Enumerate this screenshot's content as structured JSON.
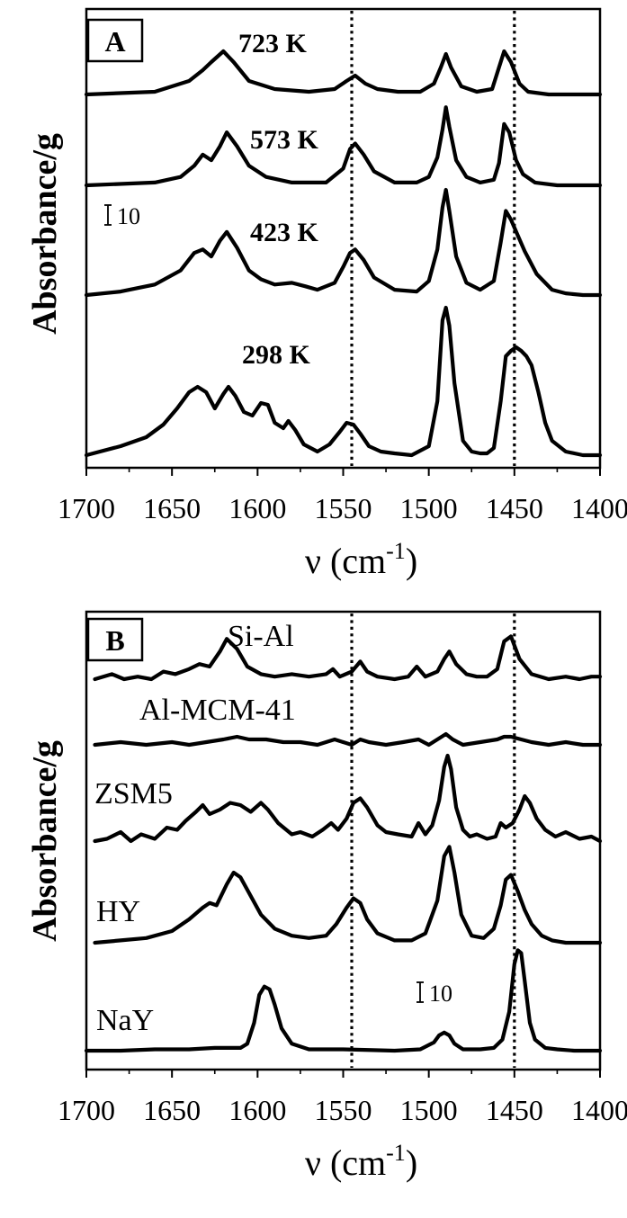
{
  "chart_data": [
    {
      "type": "line",
      "panel": "A",
      "xlabel": "ν (cm",
      "xlabel_sup": "-1",
      "xlabel_end": ")",
      "ylabel": "Absorbance/g",
      "xlim": [
        1700,
        1400
      ],
      "x_ticks": [
        "1700",
        "1650",
        "1600",
        "1550",
        "1500",
        "1450",
        "1400"
      ],
      "reference_lines": [
        1545,
        1450
      ],
      "scale_bar_label": "10",
      "series": [
        {
          "name": "723 K",
          "x": [
            1700,
            1660,
            1640,
            1632,
            1627,
            1620,
            1614,
            1605,
            1590,
            1570,
            1555,
            1548,
            1543,
            1537,
            1530,
            1518,
            1505,
            1497,
            1493,
            1490,
            1487,
            1481,
            1472,
            1463,
            1460,
            1456,
            1452,
            1447,
            1442,
            1430,
            1410,
            1400
          ],
          "y": [
            0,
            1,
            5,
            9,
            12,
            16,
            12,
            5,
            2,
            1,
            2,
            5,
            7,
            4,
            2,
            1,
            1,
            4,
            10,
            15,
            10,
            3,
            1,
            2,
            8,
            16,
            12,
            4,
            1,
            0,
            0,
            0
          ]
        },
        {
          "name": "573 K",
          "x": [
            1700,
            1660,
            1645,
            1637,
            1632,
            1627,
            1622,
            1618,
            1612,
            1605,
            1595,
            1580,
            1560,
            1550,
            1546,
            1543,
            1538,
            1532,
            1520,
            1507,
            1500,
            1495,
            1492,
            1490,
            1488,
            1484,
            1478,
            1470,
            1462,
            1459,
            1456,
            1453,
            1449,
            1445,
            1438,
            1425,
            1400
          ],
          "y": [
            0,
            1,
            3,
            7,
            11,
            9,
            14,
            19,
            14,
            7,
            3,
            1,
            1,
            6,
            13,
            15,
            11,
            5,
            1,
            1,
            3,
            10,
            20,
            28,
            21,
            9,
            3,
            1,
            2,
            8,
            22,
            19,
            9,
            4,
            1,
            0,
            0
          ]
        },
        {
          "name": "423 K",
          "x": [
            1700,
            1680,
            1660,
            1645,
            1637,
            1632,
            1627,
            1622,
            1618,
            1612,
            1605,
            1598,
            1590,
            1580,
            1572,
            1565,
            1555,
            1550,
            1546,
            1543,
            1538,
            1532,
            1520,
            1507,
            1500,
            1495,
            1492,
            1490,
            1488,
            1484,
            1478,
            1470,
            1462,
            1458,
            1455,
            1452,
            1448,
            1444,
            1437,
            1428,
            1420,
            1410,
            1400
          ],
          "y": [
            0,
            2,
            6,
            14,
            24,
            26,
            22,
            31,
            36,
            27,
            14,
            9,
            6,
            7,
            5,
            3,
            7,
            16,
            24,
            26,
            20,
            10,
            3,
            2,
            8,
            26,
            50,
            60,
            48,
            22,
            7,
            3,
            8,
            30,
            48,
            43,
            34,
            25,
            12,
            3,
            1,
            0,
            0
          ]
        },
        {
          "name": "298 K",
          "x": [
            1700,
            1680,
            1665,
            1655,
            1647,
            1640,
            1635,
            1630,
            1625,
            1620,
            1617,
            1613,
            1608,
            1603,
            1598,
            1594,
            1590,
            1585,
            1582,
            1578,
            1573,
            1565,
            1558,
            1552,
            1548,
            1544,
            1540,
            1535,
            1528,
            1520,
            1510,
            1500,
            1495,
            1492,
            1490,
            1488,
            1485,
            1480,
            1475,
            1470,
            1466,
            1462,
            1458,
            1455,
            1452,
            1449,
            1446,
            1443,
            1440,
            1436,
            1432,
            1428,
            1420,
            1410,
            1400
          ],
          "y": [
            0,
            5,
            10,
            17,
            26,
            35,
            38,
            35,
            26,
            34,
            38,
            33,
            24,
            22,
            29,
            28,
            18,
            15,
            19,
            14,
            6,
            2,
            6,
            13,
            18,
            17,
            12,
            5,
            2,
            1,
            0,
            5,
            30,
            75,
            82,
            72,
            40,
            8,
            2,
            1,
            1,
            4,
            30,
            55,
            58,
            60,
            58,
            55,
            50,
            35,
            18,
            8,
            2,
            0,
            0
          ]
        }
      ]
    },
    {
      "type": "line",
      "panel": "B",
      "xlabel": "ν (cm",
      "xlabel_sup": "-1",
      "xlabel_end": ")",
      "ylabel": "Absorbance/g",
      "xlim": [
        1700,
        1400
      ],
      "x_ticks": [
        "1700",
        "1650",
        "1600",
        "1550",
        "1500",
        "1450",
        "1400"
      ],
      "reference_lines": [
        1545,
        1450
      ],
      "scale_bar_label": "10",
      "series": [
        {
          "name": "Si-Al",
          "x": [
            1695,
            1685,
            1678,
            1670,
            1662,
            1655,
            1648,
            1640,
            1634,
            1628,
            1622,
            1618,
            1612,
            1606,
            1598,
            1590,
            1580,
            1570,
            1560,
            1556,
            1552,
            1545,
            1540,
            1536,
            1530,
            1520,
            1512,
            1507,
            1502,
            1495,
            1491,
            1488,
            1484,
            1478,
            1472,
            1466,
            1460,
            1456,
            1452,
            1447,
            1440,
            1430,
            1420,
            1412,
            1405,
            1400
          ],
          "y": [
            0,
            2,
            0,
            1,
            0,
            3,
            2,
            4,
            6,
            5,
            11,
            16,
            12,
            5,
            2,
            1,
            2,
            1,
            2,
            4,
            1,
            3,
            7,
            3,
            1,
            0,
            1,
            5,
            1,
            3,
            8,
            11,
            6,
            2,
            1,
            1,
            4,
            15,
            17,
            8,
            2,
            0,
            1,
            0,
            1,
            1
          ]
        },
        {
          "name": "Al-MCM-41",
          "x": [
            1695,
            1680,
            1665,
            1650,
            1640,
            1630,
            1620,
            1612,
            1605,
            1595,
            1585,
            1575,
            1565,
            1555,
            1545,
            1540,
            1535,
            1525,
            1515,
            1506,
            1500,
            1495,
            1490,
            1486,
            1480,
            1470,
            1460,
            1456,
            1452,
            1446,
            1440,
            1430,
            1420,
            1410,
            1400
          ],
          "y": [
            0,
            1,
            0,
            1,
            0,
            1,
            2,
            3,
            2,
            2,
            1,
            1,
            0,
            2,
            0,
            2,
            1,
            0,
            1,
            2,
            0,
            2,
            4,
            2,
            0,
            1,
            2,
            3,
            3,
            2,
            1,
            0,
            1,
            0,
            0
          ]
        },
        {
          "name": "ZSM5",
          "x": [
            1695,
            1688,
            1680,
            1674,
            1668,
            1660,
            1653,
            1647,
            1642,
            1636,
            1632,
            1628,
            1622,
            1616,
            1610,
            1604,
            1598,
            1594,
            1588,
            1580,
            1575,
            1568,
            1562,
            1557,
            1553,
            1548,
            1544,
            1540,
            1536,
            1530,
            1525,
            1518,
            1510,
            1506,
            1502,
            1498,
            1494,
            1491,
            1489,
            1487,
            1484,
            1480,
            1476,
            1472,
            1466,
            1461,
            1458,
            1455,
            1451,
            1447,
            1444,
            1441,
            1437,
            1432,
            1426,
            1420,
            1412,
            1405,
            1400
          ],
          "y": [
            0,
            1,
            4,
            0,
            3,
            1,
            6,
            5,
            9,
            13,
            16,
            12,
            14,
            17,
            16,
            13,
            17,
            14,
            8,
            3,
            4,
            2,
            5,
            8,
            5,
            10,
            17,
            19,
            15,
            7,
            4,
            3,
            2,
            8,
            3,
            7,
            18,
            33,
            38,
            32,
            15,
            5,
            2,
            3,
            1,
            2,
            8,
            6,
            8,
            14,
            20,
            17,
            10,
            5,
            2,
            4,
            1,
            2,
            0
          ]
        },
        {
          "name": "HY",
          "x": [
            1695,
            1680,
            1665,
            1650,
            1640,
            1632,
            1628,
            1624,
            1618,
            1614,
            1610,
            1604,
            1598,
            1590,
            1580,
            1570,
            1560,
            1554,
            1548,
            1544,
            1540,
            1536,
            1530,
            1520,
            1510,
            1502,
            1495,
            1491,
            1488,
            1485,
            1481,
            1475,
            1468,
            1462,
            1458,
            1455,
            1452,
            1448,
            1444,
            1440,
            1434,
            1428,
            1420,
            1410,
            1400
          ],
          "y": [
            0,
            1,
            2,
            5,
            10,
            15,
            17,
            16,
            25,
            30,
            28,
            20,
            12,
            6,
            3,
            2,
            3,
            8,
            15,
            19,
            17,
            10,
            4,
            1,
            1,
            4,
            18,
            37,
            41,
            30,
            12,
            3,
            2,
            6,
            16,
            27,
            29,
            22,
            14,
            8,
            3,
            1,
            0,
            0,
            0
          ]
        },
        {
          "name": "NaY",
          "x": [
            1700,
            1680,
            1660,
            1640,
            1625,
            1615,
            1610,
            1606,
            1602,
            1599,
            1596,
            1593,
            1590,
            1586,
            1580,
            1570,
            1550,
            1520,
            1505,
            1497,
            1494,
            1491,
            1488,
            1485,
            1480,
            1470,
            1462,
            1457,
            1453,
            1450,
            1448,
            1446,
            1444,
            1441,
            1438,
            1432,
            1425,
            1415,
            1400
          ],
          "y": [
            0,
            0,
            1,
            1,
            2,
            2,
            2,
            5,
            20,
            40,
            46,
            44,
            33,
            16,
            5,
            1,
            1,
            0,
            1,
            6,
            11,
            13,
            11,
            5,
            1,
            1,
            2,
            8,
            28,
            62,
            72,
            70,
            50,
            20,
            8,
            2,
            1,
            0,
            0
          ]
        }
      ]
    }
  ]
}
